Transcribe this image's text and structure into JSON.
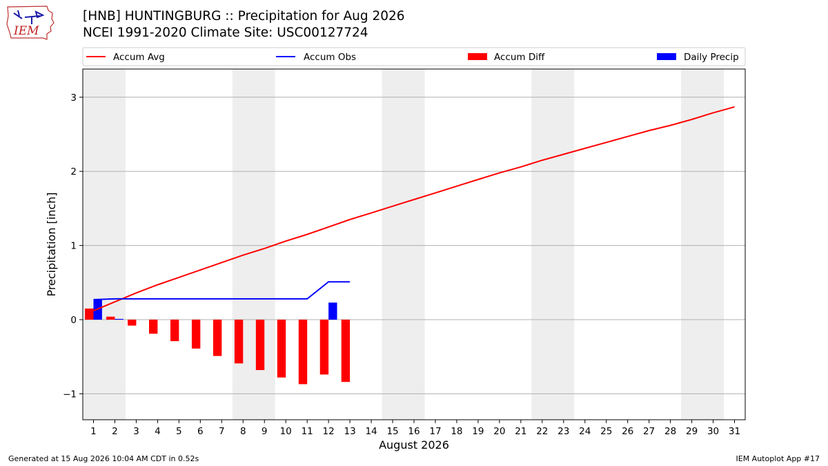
{
  "header": {
    "title_line1": "[HNB] HUNTINGBURG :: Precipitation for Aug 2026",
    "title_line2": "NCEI 1991-2020 Climate Site: USC00127724",
    "logo_text": "IEM"
  },
  "footer": {
    "generated": "Generated at 15 Aug 2026 10:04 AM CDT in 0.52s",
    "app": "IEM Autoplot App #17"
  },
  "chart_data": {
    "type": "bar",
    "xlabel": "August 2026",
    "ylabel": "Precipitation [inch]",
    "xlim": [
      0.5,
      31.5
    ],
    "ylim": [
      -1.35,
      3.38
    ],
    "y_ticks": [
      -1,
      0,
      1,
      2,
      3
    ],
    "y_tick_labels": [
      "−1",
      "0",
      "1",
      "2",
      "3"
    ],
    "x_ticks": [
      1,
      2,
      3,
      4,
      5,
      6,
      7,
      8,
      9,
      10,
      11,
      12,
      13,
      14,
      15,
      16,
      17,
      18,
      19,
      20,
      21,
      22,
      23,
      24,
      25,
      26,
      27,
      28,
      29,
      30,
      31
    ],
    "grid": "horizontal",
    "weekend_shading": [
      [
        1,
        2
      ],
      [
        8,
        9
      ],
      [
        15,
        16
      ],
      [
        22,
        23
      ],
      [
        29,
        30
      ]
    ],
    "legend": {
      "placement": "top",
      "entries": [
        "Accum Avg",
        "Accum Obs",
        "Accum Diff",
        "Daily Precip"
      ]
    },
    "colors": {
      "avg": "#ff0000",
      "obs": "#0000ff",
      "diff": "#ff0000",
      "daily": "#0000ff",
      "shade": "#eeeeee",
      "grid": "#b0b0b0"
    },
    "series": [
      {
        "name": "Accum Avg",
        "kind": "line",
        "days": [
          1,
          2,
          3,
          4,
          5,
          6,
          7,
          8,
          9,
          10,
          11,
          12,
          13,
          14,
          15,
          16,
          17,
          18,
          19,
          20,
          21,
          22,
          23,
          24,
          25,
          26,
          27,
          28,
          29,
          30,
          31
        ],
        "values": [
          0.12,
          0.24,
          0.36,
          0.47,
          0.57,
          0.67,
          0.77,
          0.87,
          0.96,
          1.06,
          1.15,
          1.25,
          1.35,
          1.44,
          1.53,
          1.62,
          1.71,
          1.8,
          1.89,
          1.98,
          2.06,
          2.15,
          2.23,
          2.31,
          2.39,
          2.47,
          2.55,
          2.62,
          2.7,
          2.79,
          2.87
        ]
      },
      {
        "name": "Accum Obs",
        "kind": "line",
        "days": [
          1,
          2,
          3,
          4,
          5,
          6,
          7,
          8,
          9,
          10,
          11,
          12,
          13
        ],
        "values": [
          0.27,
          0.28,
          0.28,
          0.28,
          0.28,
          0.28,
          0.28,
          0.28,
          0.28,
          0.28,
          0.28,
          0.51,
          0.51
        ]
      },
      {
        "name": "Accum Diff",
        "kind": "bar",
        "days": [
          1,
          2,
          3,
          4,
          5,
          6,
          7,
          8,
          9,
          10,
          11,
          12,
          13
        ],
        "values": [
          0.15,
          0.04,
          -0.08,
          -0.19,
          -0.29,
          -0.39,
          -0.49,
          -0.59,
          -0.68,
          -0.78,
          -0.87,
          -0.74,
          -0.84
        ]
      },
      {
        "name": "Daily Precip",
        "kind": "bar",
        "days": [
          1,
          2,
          12
        ],
        "values": [
          0.27,
          0.01,
          0.23
        ]
      }
    ]
  }
}
